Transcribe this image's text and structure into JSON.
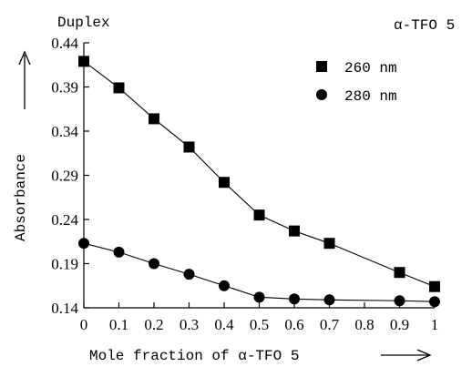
{
  "chart_data": {
    "type": "line",
    "corner_left_label": "Duplex",
    "corner_right_label": "α-TFO 5",
    "xlabel": "Mole fraction of α-TFO 5",
    "ylabel": "Absorbance",
    "xlim": [
      0,
      1
    ],
    "ylim": [
      0.14,
      0.44
    ],
    "x_ticks": [
      "0",
      "0.1",
      "0.2",
      "0.3",
      "0.4",
      "0.5",
      "0.6",
      "0.7",
      "0.8",
      "0.9",
      "1"
    ],
    "y_ticks": [
      "0.44",
      "0.39",
      "0.34",
      "0.29",
      "0.24",
      "0.19",
      "0.14"
    ],
    "legend_position": "top-right",
    "grid": false,
    "series": [
      {
        "name": "260 nm",
        "marker": "square",
        "x": [
          0,
          0.1,
          0.2,
          0.3,
          0.4,
          0.5,
          0.6,
          0.7,
          0.9,
          1
        ],
        "y": [
          0.419,
          0.389,
          0.354,
          0.322,
          0.282,
          0.245,
          0.227,
          0.213,
          0.18,
          0.164
        ]
      },
      {
        "name": "280 nm",
        "marker": "circle",
        "x": [
          0,
          0.1,
          0.2,
          0.3,
          0.4,
          0.5,
          0.6,
          0.7,
          0.9,
          1
        ],
        "y": [
          0.213,
          0.203,
          0.19,
          0.178,
          0.165,
          0.152,
          0.15,
          0.149,
          0.148,
          0.147
        ]
      }
    ]
  }
}
